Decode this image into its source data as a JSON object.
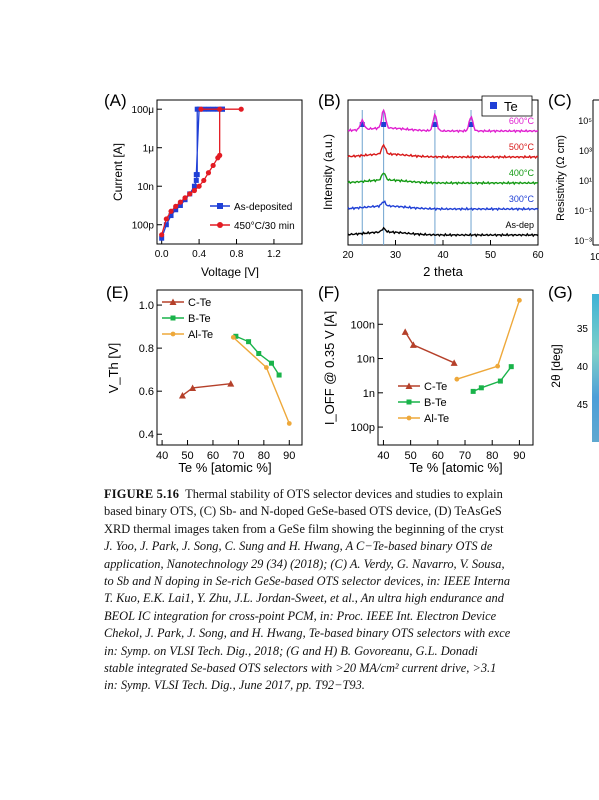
{
  "panels": {
    "A": {
      "label": "(A)",
      "ylabel": "Current [A]",
      "xlabel": "Voltage [V]",
      "yticks": [
        "100μ",
        "1μ",
        "10n",
        "100p"
      ],
      "xticks": [
        "0.0",
        "0.4",
        "0.8",
        "1.2"
      ],
      "legend": [
        "As-deposited",
        "450°C/30 min"
      ],
      "colors": [
        "#1f3fd6",
        "#e31b23"
      ]
    },
    "B": {
      "label": "(B)",
      "ylabel": "Intensity (a.u.)",
      "xlabel": "2 theta",
      "xticks": [
        "20",
        "30",
        "40",
        "50",
        "60"
      ],
      "legend": "Te",
      "traces": [
        {
          "name": "600°C",
          "color": "#e020d0"
        },
        {
          "name": "500°C",
          "color": "#d81818"
        },
        {
          "name": "400°C",
          "color": "#139a13"
        },
        {
          "name": "300°C",
          "color": "#1f3fd6"
        },
        {
          "name": "As-dep",
          "color": "#000000"
        }
      ]
    },
    "C": {
      "label": "(C)",
      "ylabel": "Resistivity (Ω cm)",
      "yticks": [
        "10⁵",
        "10³",
        "10¹",
        "10⁻¹",
        "10⁻³"
      ],
      "xtick": "10"
    },
    "E": {
      "label": "(E)",
      "ylabel": "V_Th [V]",
      "xlabel": "Te % [atomic %]",
      "yticks": [
        "1.0",
        "0.8",
        "0.6",
        "0.4"
      ],
      "xticks": [
        "40",
        "50",
        "60",
        "70",
        "80",
        "90"
      ],
      "legend": [
        "C-Te",
        "B-Te",
        "Al-Te"
      ],
      "colors": [
        "#b5402a",
        "#19b34a",
        "#eea83a"
      ]
    },
    "F": {
      "label": "(F)",
      "ylabel": "I_OFF @ 0.35 V [A]",
      "xlabel": "Te % [atomic %]",
      "yticks": [
        "100n",
        "10n",
        "1n",
        "100p"
      ],
      "xticks": [
        "40",
        "50",
        "60",
        "70",
        "80",
        "90"
      ],
      "legend": [
        "C-Te",
        "B-Te",
        "Al-Te"
      ]
    },
    "G": {
      "label": "(G)",
      "ylabel": "2θ [deg]",
      "yticks": [
        "35",
        "40",
        "45"
      ]
    }
  },
  "chart_data": [
    {
      "type": "line",
      "panel": "A",
      "xlabel": "Voltage [V]",
      "ylabel": "Current [A]",
      "xlim": [
        -0.05,
        1.5
      ],
      "yscale": "log",
      "ylim": [
        1e-11,
        0.0003
      ],
      "series": [
        {
          "name": "As-deposited",
          "x": [
            0.0,
            0.05,
            0.1,
            0.15,
            0.2,
            0.25,
            0.3,
            0.35,
            0.37,
            0.38,
            0.38,
            0.65,
            0.65,
            0.6,
            0.55,
            0.5,
            0.45,
            0.4,
            0.37
          ],
          "y": [
            2e-11,
            1e-10,
            3e-10,
            6e-10,
            1e-09,
            2e-09,
            4e-09,
            1e-08,
            2e-08,
            4e-08,
            0.0001,
            0.0001,
            0.0001,
            0.0001,
            0.0001,
            0.0001,
            0.0001,
            0.0001,
            4e-08
          ]
        },
        {
          "name": "450°C/30 min",
          "x": [
            0.0,
            0.05,
            0.1,
            0.15,
            0.2,
            0.25,
            0.3,
            0.35,
            0.4,
            0.45,
            0.5,
            0.55,
            0.6,
            0.62,
            0.62,
            0.85,
            0.42
          ],
          "y": [
            3e-11,
            2e-10,
            5e-10,
            9e-10,
            1.5e-09,
            2.5e-09,
            4e-09,
            6e-09,
            1e-08,
            2e-08,
            5e-08,
            1.2e-07,
            3e-07,
            4e-07,
            0.0001,
            0.0001,
            0.0001
          ]
        }
      ]
    },
    {
      "type": "line",
      "panel": "B",
      "xlabel": "2 theta",
      "ylabel": "Intensity (a.u.)",
      "xlim": [
        20,
        60
      ],
      "te_peaks": [
        23,
        27.5,
        38.3,
        45.9
      ],
      "series": [
        {
          "name": "600°C",
          "baseline": 4,
          "peaks": [
            [
              23,
              0.5
            ],
            [
              27.5,
              1.0
            ],
            [
              38.3,
              0.9
            ],
            [
              45.9,
              0.8
            ]
          ]
        },
        {
          "name": "500°C",
          "baseline": 3,
          "peaks": [
            [
              27.5,
              0.5
            ]
          ]
        },
        {
          "name": "400°C",
          "baseline": 2,
          "peaks": [
            [
              27.5,
              0.4
            ]
          ]
        },
        {
          "name": "300°C",
          "baseline": 1,
          "peaks": [
            [
              27.5,
              0.25
            ]
          ]
        },
        {
          "name": "As-dep",
          "baseline": 0,
          "peaks": [
            [
              27.5,
              0.2
            ]
          ]
        }
      ]
    },
    {
      "type": "line",
      "panel": "E",
      "xlabel": "Te % [atomic %]",
      "ylabel": "V_Th [V]",
      "xlim": [
        38,
        95
      ],
      "ylim": [
        0.35,
        1.07
      ],
      "series": [
        {
          "name": "C-Te",
          "x": [
            48,
            52,
            67
          ],
          "y": [
            0.58,
            0.615,
            0.635
          ]
        },
        {
          "name": "B-Te",
          "x": [
            69,
            74,
            78,
            83,
            86
          ],
          "y": [
            0.855,
            0.83,
            0.775,
            0.73,
            0.675
          ]
        },
        {
          "name": "Al-Te",
          "x": [
            68,
            81,
            90
          ],
          "y": [
            0.85,
            0.71,
            0.45
          ]
        }
      ]
    },
    {
      "type": "line",
      "panel": "F",
      "xlabel": "Te % [atomic %]",
      "ylabel": "I_OFF @ 0.35 V [A]",
      "xlim": [
        38,
        95
      ],
      "yscale": "log",
      "ylim": [
        3e-11,
        1e-06
      ],
      "series": [
        {
          "name": "C-Te",
          "x": [
            48,
            51,
            66
          ],
          "y": [
            6e-08,
            2.5e-08,
            7.5e-09
          ]
        },
        {
          "name": "B-Te",
          "x": [
            73,
            76,
            83,
            87
          ],
          "y": [
            1.1e-09,
            1.4e-09,
            2.2e-09,
            5.8e-09
          ]
        },
        {
          "name": "Al-Te",
          "x": [
            67,
            82,
            90
          ],
          "y": [
            2.5e-09,
            6e-09,
            5e-07
          ]
        }
      ]
    }
  ],
  "caption": {
    "head": "FIGURE 5.16",
    "lines": [
      "Thermal stability of OTS selector devices and studies to explain",
      "based binary OTS, (C) Sb- and N-doped GeSe-based OTS device, (D) TeAsGeS",
      "XRD thermal images taken from a GeSe film showing the beginning of the cryst",
      "J. Yoo, J. Park, J. Song, C. Sung and H. Hwang, A C−Te-based binary OTS de",
      "application, Nanotechnology 29 (34) (2018); (C) A. Verdy, G. Navarro, V. Sousa,",
      "to Sb and N doping in Se-rich GeSe-based OTS selector devices, in: IEEE Interna",
      "T. Kuo, E.K. Lai1, Y. Zhu, J.L. Jordan-Sweet, et al., An ultra high endurance and",
      "BEOL IC integration for cross-point PCM, in: Proc. IEEE Int. Electron Device",
      "Chekol, J. Park, J. Song, and H. Hwang, Te-based binary OTS selectors with exce",
      "in: Symp. on VLSI Tech. Dig., 2018; (G and H) B. Govoreanu, G.L. Donadi",
      "stable integrated Se-based OTS selectors with >20 MA/cm² current drive, >3.1",
      "in: Symp. VLSI Tech. Dig., June 2017, pp. T92−T93."
    ]
  }
}
